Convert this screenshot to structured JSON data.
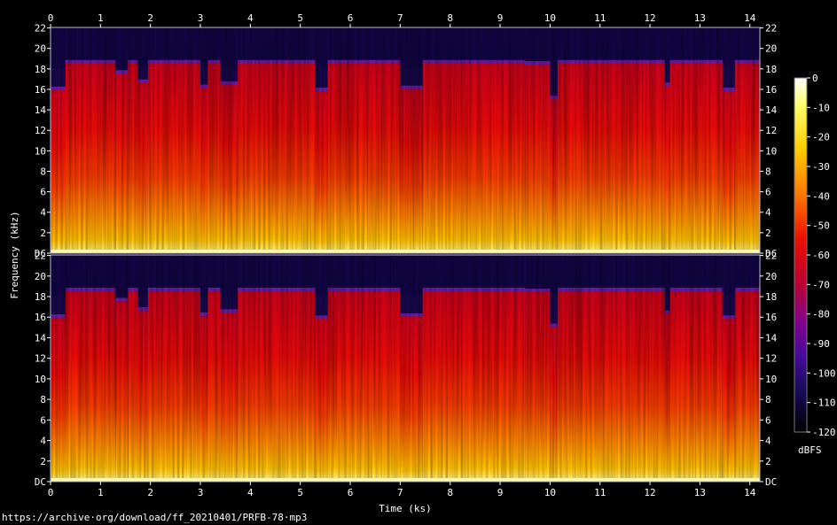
{
  "chart_data": {
    "type": "heatmap",
    "subtype": "spectrogram",
    "xlabel": "Time (ks)",
    "ylabel": "Frequency (kHz)",
    "xlim": [
      0,
      14.2
    ],
    "x_ticks": [
      "0",
      "1",
      "2",
      "3",
      "4",
      "5",
      "6",
      "7",
      "8",
      "9",
      "10",
      "11",
      "12",
      "13",
      "14"
    ],
    "ylim_khz": [
      0,
      22.05
    ],
    "y_ticks": [
      "DC",
      "2",
      "4",
      "6",
      "8",
      "10",
      "12",
      "14",
      "16",
      "18",
      "20",
      "22"
    ],
    "channels": [
      "upper channel",
      "lower channel"
    ],
    "colorbar": {
      "label": "dBFS",
      "range": [
        -120,
        0
      ],
      "ticks": [
        "0",
        "-10",
        "-20",
        "-30",
        "-40",
        "-50",
        "-60",
        "-70",
        "-80",
        "-90",
        "-100",
        "-110",
        "-120"
      ]
    },
    "cutoff_segments": [
      {
        "start": 0.0,
        "end": 0.3,
        "cutoff_khz": 16.1
      },
      {
        "start": 0.3,
        "end": 1.3,
        "cutoff_khz": 18.7
      },
      {
        "start": 1.3,
        "end": 1.55,
        "cutoff_khz": 17.7
      },
      {
        "start": 1.55,
        "end": 1.75,
        "cutoff_khz": 18.7
      },
      {
        "start": 1.75,
        "end": 1.95,
        "cutoff_khz": 16.8
      },
      {
        "start": 1.95,
        "end": 3.0,
        "cutoff_khz": 18.7
      },
      {
        "start": 3.0,
        "end": 3.15,
        "cutoff_khz": 16.3
      },
      {
        "start": 3.15,
        "end": 3.4,
        "cutoff_khz": 18.7
      },
      {
        "start": 3.4,
        "end": 3.75,
        "cutoff_khz": 16.6
      },
      {
        "start": 3.75,
        "end": 5.3,
        "cutoff_khz": 18.7
      },
      {
        "start": 5.3,
        "end": 5.55,
        "cutoff_khz": 16.0
      },
      {
        "start": 5.55,
        "end": 7.0,
        "cutoff_khz": 18.7
      },
      {
        "start": 7.0,
        "end": 7.45,
        "cutoff_khz": 16.2
      },
      {
        "start": 7.45,
        "end": 9.5,
        "cutoff_khz": 18.7
      },
      {
        "start": 9.5,
        "end": 10.0,
        "cutoff_khz": 18.6
      },
      {
        "start": 10.0,
        "end": 10.15,
        "cutoff_khz": 15.2
      },
      {
        "start": 10.15,
        "end": 12.3,
        "cutoff_khz": 18.7
      },
      {
        "start": 12.3,
        "end": 12.4,
        "cutoff_khz": 16.5
      },
      {
        "start": 12.4,
        "end": 13.45,
        "cutoff_khz": 18.7
      },
      {
        "start": 13.45,
        "end": 13.7,
        "cutoff_khz": 16.0
      },
      {
        "start": 13.7,
        "end": 14.2,
        "cutoff_khz": 18.7
      }
    ],
    "grid": false,
    "legend": "right"
  },
  "source_url": "https://archive·org/download/ff_20210401/PRFB-78·mp3"
}
